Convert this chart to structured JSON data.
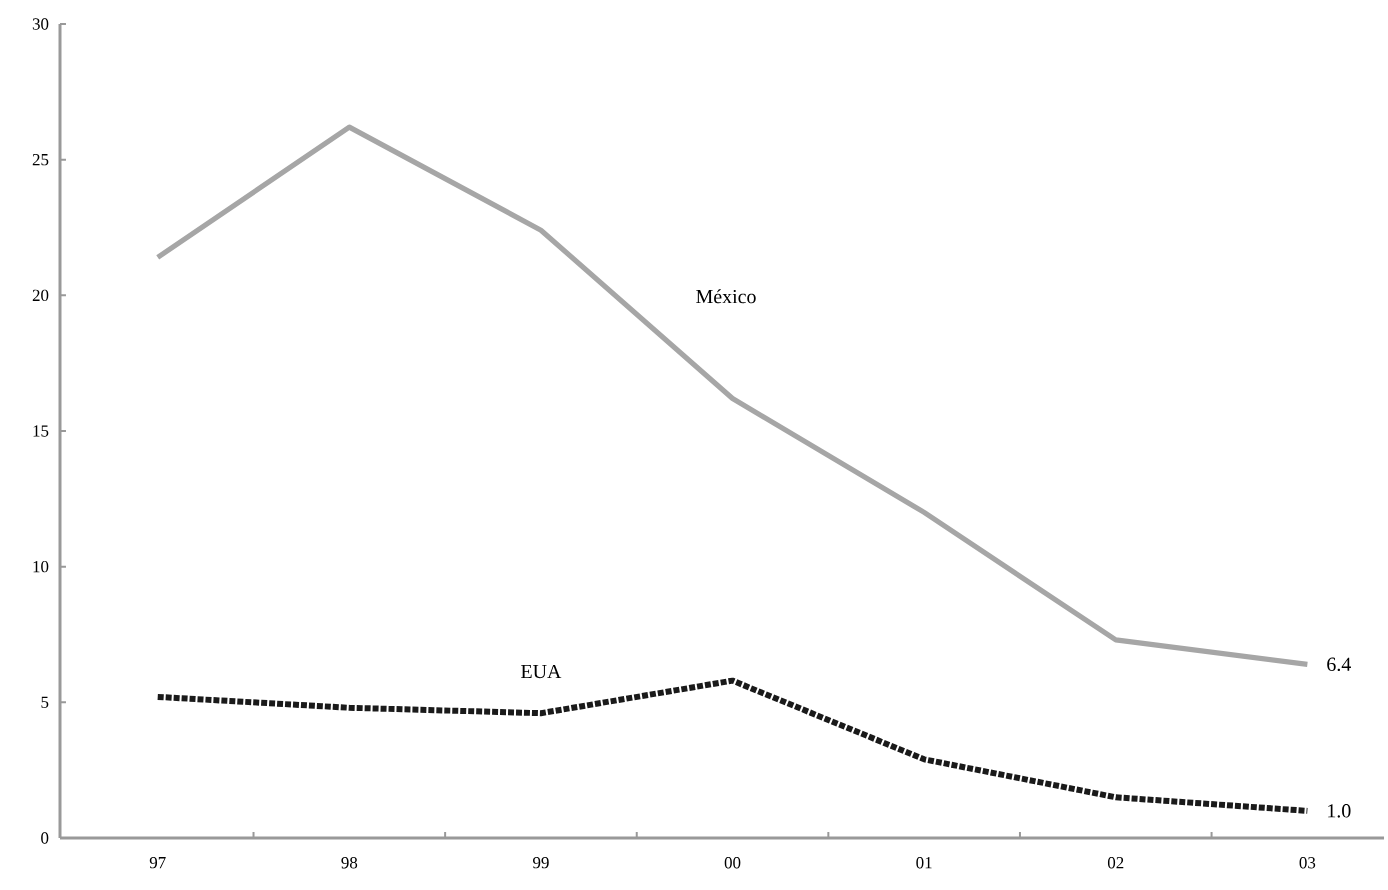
{
  "chart_data": {
    "type": "line",
    "categories": [
      "97",
      "98",
      "99",
      "00",
      "01",
      "02",
      "03"
    ],
    "ylim": [
      0,
      30
    ],
    "yticks": [
      0,
      5,
      10,
      15,
      20,
      25,
      30
    ],
    "grid": false,
    "marker": "none",
    "series": [
      {
        "name": "México",
        "color": "#a6a6a6",
        "line_style": "solid",
        "values": [
          21.4,
          26.2,
          22.4,
          16.2,
          12.0,
          7.3,
          6.4
        ],
        "value_labels": [
          null,
          null,
          null,
          null,
          null,
          null,
          "6.4"
        ]
      },
      {
        "name": "EUA",
        "color": "#1a1a1a",
        "line_style": "dotted",
        "values": [
          5.2,
          4.8,
          4.6,
          5.8,
          2.9,
          1.5,
          1.0
        ],
        "value_labels": [
          null,
          null,
          null,
          null,
          null,
          null,
          "1.0"
        ]
      }
    ]
  }
}
